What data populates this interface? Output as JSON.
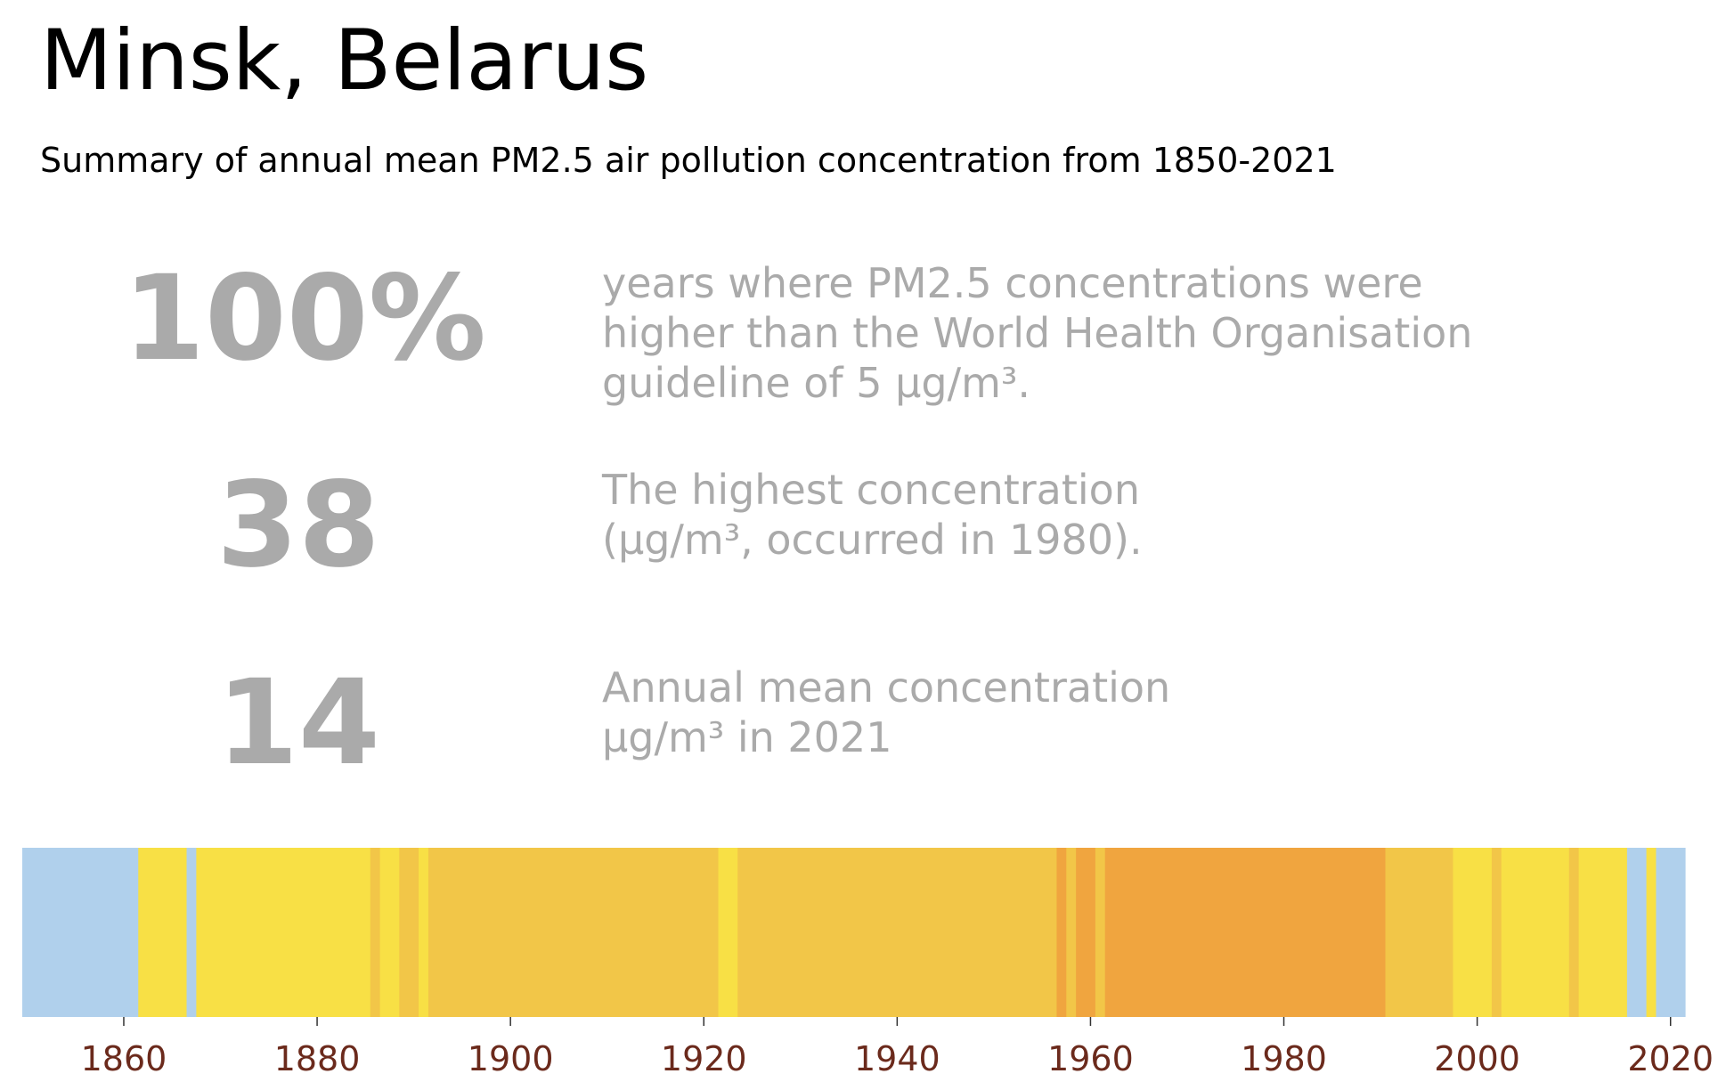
{
  "title": "Minsk, Belarus",
  "subtitle": "Summary of annual mean PM2.5 air pollution concentration from 1850-2021",
  "stats": [
    {
      "value": "100%",
      "lines": [
        "years where PM2.5 concentrations were",
        "higher than the World Health Organisation",
        "guideline of 5 µg/m³."
      ]
    },
    {
      "value": "38",
      "lines": [
        "The highest concentration",
        "(µg/m³, occurred in 1980)."
      ]
    },
    {
      "value": "14",
      "lines": [
        "Annual mean concentration",
        "µg/m³ in 2021"
      ]
    }
  ],
  "colors": {
    "text_muted": "#aaaaaa",
    "tick_label": "#6b2a1c",
    "light_blue": "#b0d0ec",
    "yellow": "#f8e045",
    "gold": "#f2c648",
    "orange": "#f0a53f"
  },
  "chart_data": {
    "type": "heatmap",
    "title": "",
    "xlabel": "",
    "ylabel": "",
    "xlim": [
      1850,
      2021
    ],
    "x_ticks": [
      1860,
      1880,
      1900,
      1920,
      1940,
      1960,
      1980,
      2000,
      2020
    ],
    "grid": false,
    "legend": "none",
    "color_classes": {
      "light_blue": "#b0d0ec",
      "yellow": "#f8e045",
      "gold": "#f2c648",
      "orange": "#f0a53f"
    },
    "segments": [
      {
        "start": 1850,
        "end": 1861,
        "color_class": "light_blue"
      },
      {
        "start": 1862,
        "end": 1866,
        "color_class": "yellow"
      },
      {
        "start": 1867,
        "end": 1867,
        "color_class": "light_blue"
      },
      {
        "start": 1868,
        "end": 1885,
        "color_class": "yellow"
      },
      {
        "start": 1886,
        "end": 1886,
        "color_class": "gold"
      },
      {
        "start": 1887,
        "end": 1888,
        "color_class": "yellow"
      },
      {
        "start": 1889,
        "end": 1890,
        "color_class": "gold"
      },
      {
        "start": 1891,
        "end": 1891,
        "color_class": "yellow"
      },
      {
        "start": 1892,
        "end": 1921,
        "color_class": "gold"
      },
      {
        "start": 1922,
        "end": 1923,
        "color_class": "yellow"
      },
      {
        "start": 1924,
        "end": 1956,
        "color_class": "gold"
      },
      {
        "start": 1957,
        "end": 1957,
        "color_class": "orange"
      },
      {
        "start": 1958,
        "end": 1958,
        "color_class": "gold"
      },
      {
        "start": 1959,
        "end": 1960,
        "color_class": "orange"
      },
      {
        "start": 1961,
        "end": 1961,
        "color_class": "gold"
      },
      {
        "start": 1962,
        "end": 1990,
        "color_class": "orange"
      },
      {
        "start": 1991,
        "end": 1997,
        "color_class": "gold"
      },
      {
        "start": 1998,
        "end": 2001,
        "color_class": "yellow"
      },
      {
        "start": 2002,
        "end": 2002,
        "color_class": "gold"
      },
      {
        "start": 2003,
        "end": 2009,
        "color_class": "yellow"
      },
      {
        "start": 2010,
        "end": 2010,
        "color_class": "gold"
      },
      {
        "start": 2011,
        "end": 2015,
        "color_class": "yellow"
      },
      {
        "start": 2016,
        "end": 2017,
        "color_class": "light_blue"
      },
      {
        "start": 2018,
        "end": 2018,
        "color_class": "yellow"
      },
      {
        "start": 2019,
        "end": 2021,
        "color_class": "light_blue"
      }
    ]
  }
}
